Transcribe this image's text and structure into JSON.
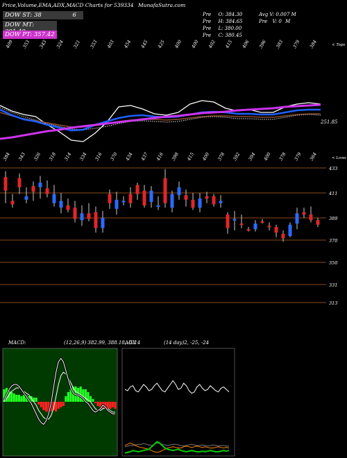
{
  "header": {
    "title": "Price,Volume,EMA,ADX,MACD Charts for 539334",
    "site": "MunafaSutra.com",
    "stats": [
      [
        "Pre",
        "O: 384.30",
        "Avg V: 0.007 M"
      ],
      [
        "Pre",
        "H: 384.65",
        "Pre",
        "V: 0",
        "M"
      ],
      [
        "Pre",
        "L: 380.00"
      ],
      [
        "Pre",
        "C: 380.45"
      ]
    ]
  },
  "legend": [
    {
      "label": "DOW ST: 38",
      "extra": "6",
      "color": "#3a3a3a"
    },
    {
      "label": "DOW MT: 391.49",
      "color": "#3a3a3a"
    },
    {
      "label": "DOW PT: 357.42",
      "color": "#cc33cc"
    }
  ],
  "price_panel": {
    "top_axis_labels": [
      "409",
      "353",
      "343",
      "324",
      "321",
      "353",
      "403",
      "454",
      "445",
      "425",
      "400",
      "400",
      "402",
      "415",
      "406",
      "396",
      "383",
      "379",
      "384"
    ],
    "top_right_label": "< Tops",
    "bottom_axis_labels": [
      "384",
      "343",
      "326",
      "318",
      "314",
      "334",
      "316",
      "370",
      "434",
      "437",
      "416",
      "398",
      "415",
      "400",
      "378",
      "392",
      "394",
      "400",
      "378",
      "379",
      "364"
    ],
    "bottom_right_label": "< Lows",
    "value_label": "251.85"
  },
  "candle_panel": {
    "levels": [
      "433",
      "411",
      "389",
      "370",
      "350",
      "331",
      "313"
    ]
  },
  "macd_panel": {
    "label": "MACD:",
    "values": "(12,26,9) 382.99, 388.18, -5.14"
  },
  "adx_panel": {
    "label": "ADX",
    "values": "(14 day)2, -25, -24"
  },
  "chart_data": {
    "type": "line",
    "series": [
      {
        "values": [
          228,
          220,
          215,
          212,
          200,
          190,
          178,
          176,
          188,
          204,
          226,
          228,
          223,
          216,
          214,
          218,
          230,
          235,
          233,
          224,
          220,
          222,
          218,
          218,
          226,
          230,
          232,
          230
        ]
      },
      {
        "values": [
          222,
          214,
          208,
          205,
          200,
          196,
          192,
          193,
          200,
          205,
          210,
          213,
          214,
          212,
          211,
          212,
          215,
          218,
          219,
          218,
          216,
          216,
          215,
          215,
          218,
          221,
          222,
          222
        ]
      },
      {
        "values": [
          218,
          213,
          209,
          206,
          203,
          200,
          197,
          197,
          199,
          202,
          205,
          207,
          208,
          208,
          207,
          208,
          210,
          212,
          213,
          213,
          212,
          212,
          211,
          211,
          213,
          215,
          216,
          216
        ]
      },
      {
        "values": [
          225,
          218,
          212,
          207,
          202,
          198,
          194,
          193,
          195,
          198,
          202,
          205,
          206,
          205,
          204,
          205,
          208,
          211,
          212,
          211,
          209,
          209,
          208,
          208,
          211,
          214,
          215,
          214
        ]
      },
      {
        "values": [
          180,
          182,
          185,
          188,
          191,
          193,
          196,
          198,
          200,
          202,
          204,
          206,
          208,
          210,
          212,
          213,
          215,
          217,
          218,
          219,
          221,
          222,
          223,
          224,
          226,
          227,
          228,
          229
        ]
      }
    ],
    "candles": [
      {
        "o": 413,
        "h": 430,
        "l": 402,
        "c": 425,
        "up": false
      },
      {
        "o": 404,
        "h": 410,
        "l": 398,
        "c": 401,
        "up": false
      },
      {
        "o": 416,
        "h": 428,
        "l": 410,
        "c": 424,
        "up": false
      },
      {
        "o": 408,
        "h": 416,
        "l": 402,
        "c": 405,
        "up": true
      },
      {
        "o": 412,
        "h": 421,
        "l": 404,
        "c": 417,
        "up": false
      },
      {
        "o": 416,
        "h": 426,
        "l": 406,
        "c": 420,
        "up": true
      },
      {
        "o": 415,
        "h": 422,
        "l": 407,
        "c": 410,
        "up": false
      },
      {
        "o": 410,
        "h": 418,
        "l": 399,
        "c": 402,
        "up": true
      },
      {
        "o": 404,
        "h": 411,
        "l": 393,
        "c": 398,
        "up": true
      },
      {
        "o": 400,
        "h": 406,
        "l": 394,
        "c": 396,
        "up": false
      },
      {
        "o": 398,
        "h": 404,
        "l": 385,
        "c": 388,
        "up": false
      },
      {
        "o": 387,
        "h": 400,
        "l": 382,
        "c": 393,
        "up": true
      },
      {
        "o": 393,
        "h": 402,
        "l": 386,
        "c": 388,
        "up": false
      },
      {
        "o": 394,
        "h": 399,
        "l": 376,
        "c": 380,
        "up": false
      },
      {
        "o": 380,
        "h": 395,
        "l": 376,
        "c": 389,
        "up": true
      },
      {
        "o": 402,
        "h": 414,
        "l": 397,
        "c": 410,
        "up": false
      },
      {
        "o": 397,
        "h": 412,
        "l": 392,
        "c": 405,
        "up": true
      },
      {
        "o": 404,
        "h": 408,
        "l": 400,
        "c": 403,
        "up": true
      },
      {
        "o": 410,
        "h": 416,
        "l": 398,
        "c": 402,
        "up": false
      },
      {
        "o": 418,
        "h": 420,
        "l": 405,
        "c": 410,
        "up": false
      },
      {
        "o": 413,
        "h": 418,
        "l": 398,
        "c": 400,
        "up": false
      },
      {
        "o": 403,
        "h": 417,
        "l": 398,
        "c": 413,
        "up": true
      },
      {
        "o": 400,
        "h": 408,
        "l": 396,
        "c": 400,
        "up": true
      },
      {
        "o": 424,
        "h": 432,
        "l": 398,
        "c": 402,
        "up": false
      },
      {
        "o": 398,
        "h": 413,
        "l": 394,
        "c": 410,
        "up": true
      },
      {
        "o": 416,
        "h": 421,
        "l": 405,
        "c": 409,
        "up": true
      },
      {
        "o": 409,
        "h": 414,
        "l": 399,
        "c": 405,
        "up": false
      },
      {
        "o": 405,
        "h": 411,
        "l": 396,
        "c": 398,
        "up": false
      },
      {
        "o": 398,
        "h": 411,
        "l": 394,
        "c": 406,
        "up": true
      },
      {
        "o": 406,
        "h": 412,
        "l": 402,
        "c": 408,
        "up": false
      },
      {
        "o": 408,
        "h": 410,
        "l": 399,
        "c": 401,
        "up": false
      },
      {
        "o": 404,
        "h": 409,
        "l": 398,
        "c": 402,
        "up": true
      },
      {
        "o": 392,
        "h": 394,
        "l": 375,
        "c": 380,
        "up": false
      },
      {
        "o": 388,
        "h": 395,
        "l": 378,
        "c": 388,
        "up": true
      },
      {
        "o": 384,
        "h": 392,
        "l": 380,
        "c": 383,
        "up": false
      },
      {
        "o": 379,
        "h": 381,
        "l": 377,
        "c": 378,
        "up": false
      },
      {
        "o": 379,
        "h": 387,
        "l": 377,
        "c": 384,
        "up": true
      },
      {
        "o": 386,
        "h": 388,
        "l": 384,
        "c": 386,
        "up": false
      },
      {
        "o": 382,
        "h": 385,
        "l": 378,
        "c": 381,
        "up": false
      },
      {
        "o": 381,
        "h": 383,
        "l": 372,
        "c": 376,
        "up": false
      },
      {
        "o": 371,
        "h": 378,
        "l": 368,
        "c": 375,
        "up": false
      },
      {
        "o": 373,
        "h": 385,
        "l": 372,
        "c": 383,
        "up": true
      },
      {
        "o": 384,
        "h": 398,
        "l": 379,
        "c": 393,
        "up": true
      },
      {
        "o": 392,
        "h": 398,
        "l": 389,
        "c": 394,
        "up": false
      },
      {
        "o": 392,
        "h": 399,
        "l": 385,
        "c": 387,
        "up": false
      },
      {
        "o": 387,
        "h": 389,
        "l": 381,
        "c": 383,
        "up": false
      }
    ],
    "macd": {
      "hist": [
        18,
        20,
        16,
        14,
        12,
        10,
        10,
        8,
        10,
        10,
        8,
        8,
        6,
        6,
        -4,
        -8,
        -12,
        -14,
        -16,
        -14,
        -12,
        -14,
        -10,
        -8,
        -6,
        8,
        14,
        18,
        22,
        22,
        20,
        22,
        18,
        18,
        14,
        8,
        4,
        -2,
        -6,
        -8,
        -10,
        -10,
        -12,
        -10,
        -8,
        -10
      ],
      "line": [
        2,
        8,
        14,
        18,
        20,
        20,
        18,
        14,
        10,
        6,
        2,
        -2,
        -8,
        -14,
        -20,
        -24,
        -26,
        -22,
        -14,
        -2,
        16,
        34,
        46,
        50,
        46,
        36,
        26,
        16,
        10,
        8,
        8,
        6,
        4,
        0,
        -2,
        -6,
        -10,
        -12,
        -10,
        -8,
        -4,
        -6,
        -10,
        -12,
        -14,
        -14
      ],
      "signal": [
        0,
        4,
        8,
        12,
        14,
        16,
        16,
        14,
        12,
        10,
        8,
        4,
        0,
        -4,
        -10,
        -14,
        -18,
        -20,
        -20,
        -16,
        -8,
        6,
        20,
        30,
        34,
        32,
        28,
        22,
        16,
        12,
        10,
        8,
        6,
        4,
        2,
        0,
        -4,
        -8,
        -10,
        -10,
        -8,
        -7,
        -8,
        -10,
        -12,
        -12
      ]
    },
    "adx": {
      "di": [
        62,
        60,
        66,
        68,
        60,
        58,
        64,
        70,
        66,
        60,
        62,
        68,
        72,
        66,
        60,
        58,
        64,
        70,
        76,
        70,
        62,
        64,
        72,
        68,
        60,
        56,
        58,
        66,
        70,
        64,
        60,
        62,
        68,
        64,
        60,
        58,
        64,
        66,
        62,
        58
      ],
      "adx": [
        18,
        19,
        20,
        20,
        21,
        22,
        22,
        23,
        22,
        21,
        20,
        22,
        24,
        23,
        22,
        21,
        20,
        21,
        22,
        22,
        21,
        20,
        19,
        20,
        21,
        22,
        21,
        20,
        20,
        21,
        20,
        19,
        20,
        21,
        20,
        19,
        20,
        20,
        19,
        19
      ],
      "pos": [
        8,
        9,
        10,
        12,
        11,
        10,
        11,
        12,
        13,
        14,
        18,
        22,
        26,
        24,
        20,
        16,
        14,
        13,
        12,
        13,
        14,
        12,
        11,
        10,
        11,
        12,
        11,
        10,
        10,
        11,
        10,
        11,
        12,
        11,
        10,
        10,
        11,
        12,
        11,
        12
      ],
      "neg": [
        20,
        22,
        24,
        22,
        20,
        18,
        17,
        16,
        15,
        14,
        12,
        10,
        9,
        10,
        12,
        14,
        16,
        17,
        18,
        17,
        16,
        16,
        18,
        19,
        18,
        17,
        18,
        19,
        18,
        17,
        18,
        17,
        16,
        16,
        17,
        18,
        17,
        16,
        17,
        16
      ]
    }
  }
}
